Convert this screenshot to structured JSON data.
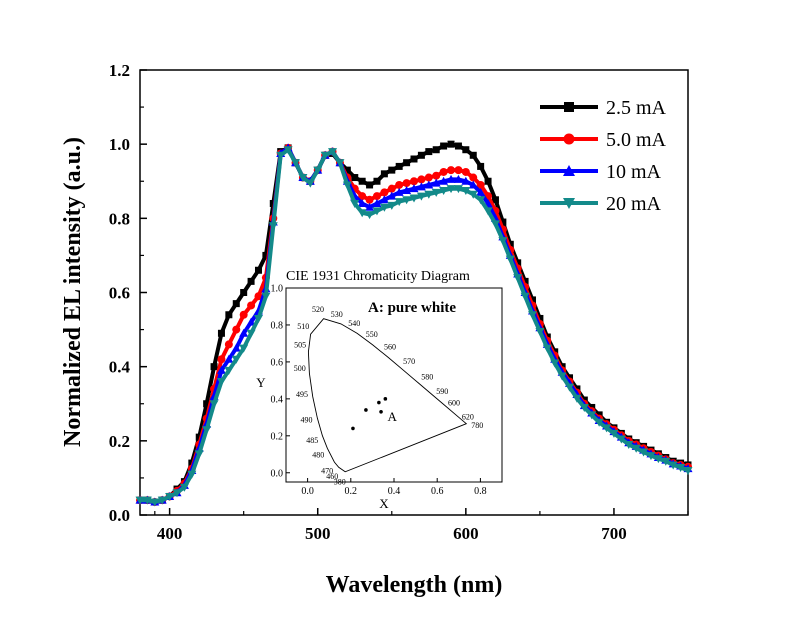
{
  "chart_data": {
    "type": "line",
    "xlabel": "Wavelength (nm)",
    "ylabel": "Normalized EL intensity (a.u.)",
    "xlim": [
      380,
      750
    ],
    "ylim": [
      0.0,
      1.2
    ],
    "x_ticks": [
      "400",
      "500",
      "600",
      "700"
    ],
    "y_ticks": [
      "0.0",
      "0.2",
      "0.4",
      "0.6",
      "0.8",
      "1.0",
      "1.2"
    ],
    "grid": false,
    "legend_position": "top-right",
    "x": [
      380,
      385,
      390,
      395,
      400,
      405,
      410,
      415,
      420,
      425,
      430,
      435,
      440,
      445,
      450,
      455,
      460,
      465,
      470,
      475,
      480,
      485,
      490,
      495,
      500,
      505,
      510,
      515,
      520,
      525,
      530,
      535,
      540,
      545,
      550,
      555,
      560,
      565,
      570,
      575,
      580,
      585,
      590,
      595,
      600,
      605,
      610,
      615,
      620,
      625,
      630,
      635,
      640,
      645,
      650,
      655,
      660,
      665,
      670,
      675,
      680,
      685,
      690,
      695,
      700,
      705,
      710,
      715,
      720,
      725,
      730,
      735,
      740,
      745,
      750
    ],
    "series": [
      {
        "name": "2.5 mA",
        "color": "#000000",
        "marker": "square",
        "values": [
          0.04,
          0.04,
          0.035,
          0.04,
          0.05,
          0.07,
          0.09,
          0.14,
          0.21,
          0.3,
          0.4,
          0.49,
          0.54,
          0.57,
          0.6,
          0.63,
          0.66,
          0.7,
          0.84,
          0.98,
          0.99,
          0.95,
          0.91,
          0.9,
          0.93,
          0.97,
          0.975,
          0.95,
          0.93,
          0.91,
          0.9,
          0.89,
          0.9,
          0.92,
          0.93,
          0.94,
          0.95,
          0.96,
          0.97,
          0.98,
          0.985,
          0.995,
          1.0,
          0.995,
          0.985,
          0.97,
          0.94,
          0.9,
          0.85,
          0.79,
          0.73,
          0.68,
          0.63,
          0.58,
          0.53,
          0.48,
          0.44,
          0.4,
          0.37,
          0.34,
          0.31,
          0.29,
          0.27,
          0.25,
          0.235,
          0.22,
          0.205,
          0.195,
          0.185,
          0.175,
          0.165,
          0.155,
          0.145,
          0.14,
          0.135
        ]
      },
      {
        "name": "5.0 mA",
        "color": "#ff0000",
        "marker": "circle",
        "values": [
          0.04,
          0.04,
          0.035,
          0.04,
          0.05,
          0.065,
          0.085,
          0.125,
          0.19,
          0.26,
          0.34,
          0.42,
          0.46,
          0.5,
          0.54,
          0.565,
          0.59,
          0.64,
          0.8,
          0.975,
          0.99,
          0.95,
          0.91,
          0.9,
          0.93,
          0.97,
          0.98,
          0.95,
          0.91,
          0.88,
          0.86,
          0.85,
          0.86,
          0.87,
          0.88,
          0.89,
          0.895,
          0.9,
          0.905,
          0.91,
          0.915,
          0.925,
          0.93,
          0.93,
          0.925,
          0.91,
          0.89,
          0.86,
          0.82,
          0.77,
          0.715,
          0.665,
          0.615,
          0.565,
          0.515,
          0.47,
          0.43,
          0.39,
          0.36,
          0.33,
          0.3,
          0.28,
          0.26,
          0.245,
          0.23,
          0.215,
          0.2,
          0.19,
          0.18,
          0.17,
          0.16,
          0.15,
          0.14,
          0.135,
          0.13
        ]
      },
      {
        "name": "10 mA",
        "color": "#0000ff",
        "marker": "triangle-up",
        "values": [
          0.04,
          0.04,
          0.035,
          0.04,
          0.05,
          0.06,
          0.08,
          0.12,
          0.18,
          0.245,
          0.32,
          0.39,
          0.42,
          0.45,
          0.49,
          0.52,
          0.55,
          0.61,
          0.79,
          0.975,
          0.99,
          0.95,
          0.91,
          0.9,
          0.93,
          0.97,
          0.98,
          0.95,
          0.9,
          0.86,
          0.84,
          0.83,
          0.84,
          0.85,
          0.86,
          0.87,
          0.875,
          0.88,
          0.885,
          0.89,
          0.895,
          0.9,
          0.905,
          0.905,
          0.9,
          0.89,
          0.87,
          0.84,
          0.8,
          0.75,
          0.7,
          0.65,
          0.6,
          0.55,
          0.505,
          0.46,
          0.42,
          0.385,
          0.355,
          0.325,
          0.295,
          0.275,
          0.255,
          0.24,
          0.225,
          0.21,
          0.195,
          0.185,
          0.175,
          0.165,
          0.155,
          0.148,
          0.138,
          0.132,
          0.125
        ]
      },
      {
        "name": "20 mA",
        "color": "#138a8a",
        "marker": "triangle-down",
        "values": [
          0.04,
          0.04,
          0.035,
          0.04,
          0.05,
          0.06,
          0.075,
          0.11,
          0.165,
          0.23,
          0.3,
          0.36,
          0.39,
          0.42,
          0.45,
          0.49,
          0.53,
          0.59,
          0.78,
          0.97,
          0.985,
          0.95,
          0.91,
          0.895,
          0.93,
          0.97,
          0.98,
          0.95,
          0.89,
          0.84,
          0.815,
          0.81,
          0.82,
          0.83,
          0.835,
          0.845,
          0.85,
          0.855,
          0.86,
          0.865,
          0.87,
          0.875,
          0.88,
          0.88,
          0.875,
          0.865,
          0.85,
          0.82,
          0.785,
          0.74,
          0.69,
          0.64,
          0.59,
          0.54,
          0.495,
          0.45,
          0.41,
          0.375,
          0.345,
          0.315,
          0.29,
          0.27,
          0.25,
          0.235,
          0.22,
          0.205,
          0.19,
          0.18,
          0.17,
          0.16,
          0.152,
          0.145,
          0.135,
          0.128,
          0.12
        ]
      }
    ]
  },
  "inset": {
    "title": "CIE 1931 Chromaticity Diagram",
    "annotation": "A: pure white",
    "point_label": "A",
    "xlabel": "X",
    "ylabel": "Y",
    "xlim": [
      -0.1,
      0.9
    ],
    "ylim": [
      -0.05,
      1.0
    ],
    "x_ticks": [
      "0.0",
      "0.2",
      "0.4",
      "0.6",
      "0.8"
    ],
    "y_ticks": [
      "0.0",
      "0.2",
      "0.4",
      "0.6",
      "0.8",
      "1.0"
    ],
    "locus": [
      {
        "wl": "380",
        "x": 0.1741,
        "y": 0.005
      },
      {
        "wl": "460",
        "x": 0.144,
        "y": 0.0297
      },
      {
        "wl": "470",
        "x": 0.1241,
        "y": 0.0578
      },
      {
        "wl": "480",
        "x": 0.0913,
        "y": 0.1327
      },
      {
        "wl": "485",
        "x": 0.0687,
        "y": 0.2007
      },
      {
        "wl": "490",
        "x": 0.0454,
        "y": 0.295
      },
      {
        "wl": "495",
        "x": 0.0235,
        "y": 0.4127
      },
      {
        "wl": "500",
        "x": 0.0082,
        "y": 0.5384
      },
      {
        "wl": "505",
        "x": 0.0039,
        "y": 0.6548
      },
      {
        "wl": "510",
        "x": 0.0139,
        "y": 0.7502
      },
      {
        "wl": "520",
        "x": 0.0743,
        "y": 0.8338
      },
      {
        "wl": "530",
        "x": 0.1547,
        "y": 0.8059
      },
      {
        "wl": "540",
        "x": 0.2296,
        "y": 0.7543
      },
      {
        "wl": "550",
        "x": 0.3016,
        "y": 0.6923
      },
      {
        "wl": "560",
        "x": 0.3731,
        "y": 0.6245
      },
      {
        "wl": "570",
        "x": 0.4441,
        "y": 0.5547
      },
      {
        "wl": "580",
        "x": 0.5125,
        "y": 0.4866
      },
      {
        "wl": "590",
        "x": 0.5752,
        "y": 0.4242
      },
      {
        "wl": "600",
        "x": 0.627,
        "y": 0.3725
      },
      {
        "wl": "620",
        "x": 0.6915,
        "y": 0.3083
      },
      {
        "wl": "780",
        "x": 0.7347,
        "y": 0.2653
      }
    ],
    "points": [
      {
        "x": 0.21,
        "y": 0.24
      },
      {
        "x": 0.27,
        "y": 0.34
      },
      {
        "x": 0.33,
        "y": 0.38
      },
      {
        "x": 0.36,
        "y": 0.4
      },
      {
        "x": 0.34,
        "y": 0.33
      }
    ]
  }
}
